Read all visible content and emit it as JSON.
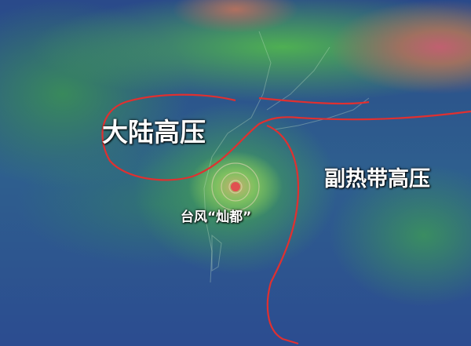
{
  "labels": {
    "continental_high": "大陆高压",
    "subtropical_high": "副热带高压",
    "typhoon": "台风“灿都”"
  },
  "colors": {
    "boundary_line": "#e03030",
    "typhoon_core": "#e05050",
    "label_text": "#ffffff"
  }
}
